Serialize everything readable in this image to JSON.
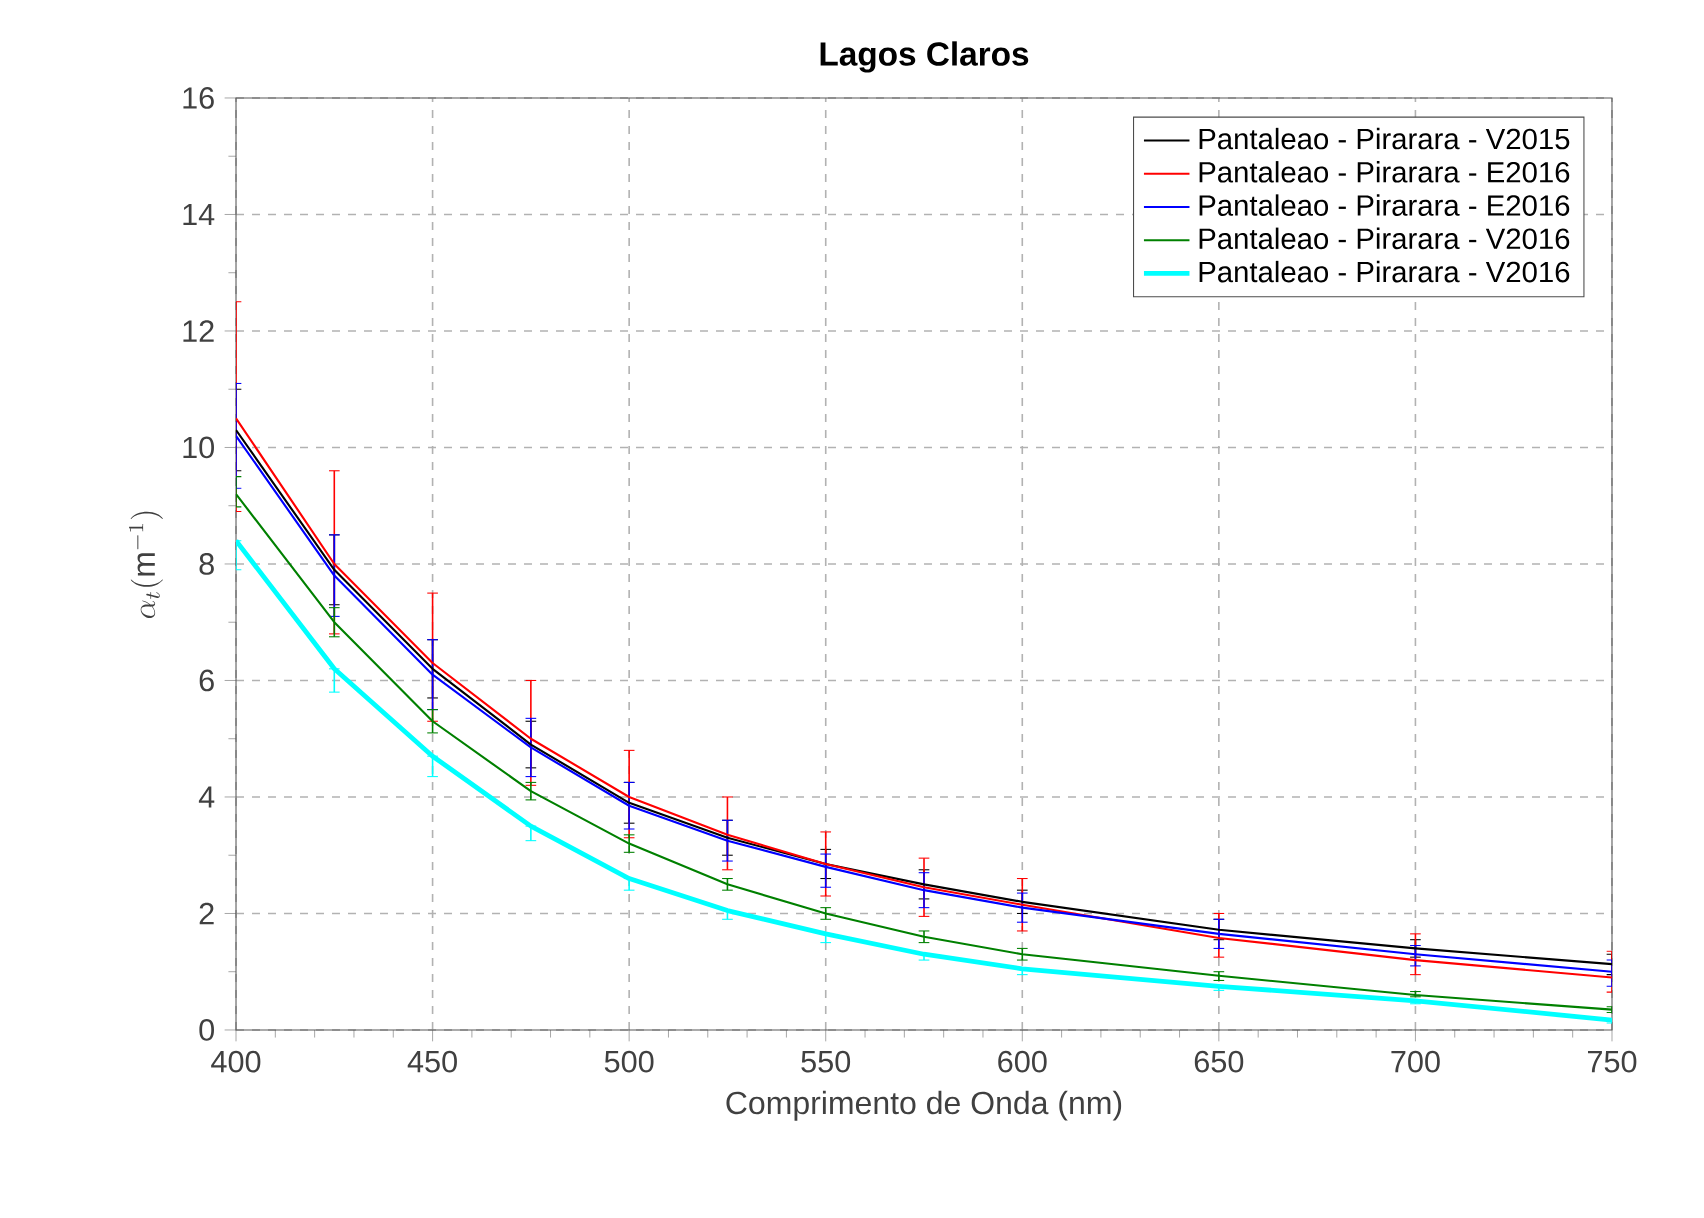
{
  "chart_data": {
    "type": "line",
    "title": "Lagos Claros",
    "xlabel": "Comprimento de Onda (nm)",
    "ylabel": "\\alpha_t(\\mathrm{m}^{-1})",
    "x": [
      400,
      425,
      450,
      475,
      500,
      525,
      550,
      575,
      600,
      650,
      700,
      750
    ],
    "series": [
      {
        "name": "Pantaleao - Pirarara - V2015",
        "color": "#000000",
        "values": [
          10.3,
          7.9,
          6.2,
          4.9,
          3.9,
          3.3,
          2.85,
          2.5,
          2.2,
          1.72,
          1.4,
          1.13
        ],
        "errors": [
          [
            9.6,
            11.0
          ],
          [
            7.3,
            8.5
          ],
          [
            5.7,
            6.7
          ],
          [
            4.5,
            5.3
          ],
          [
            3.55,
            4.25
          ],
          [
            3.0,
            3.6
          ],
          [
            2.6,
            3.1
          ],
          [
            2.25,
            2.75
          ],
          [
            2.0,
            2.4
          ],
          [
            1.55,
            1.9
          ],
          [
            1.25,
            1.55
          ],
          [
            0.95,
            1.3
          ]
        ]
      },
      {
        "name": "Pantaleao - Pirarara - E2016",
        "color": "#ff0000",
        "values": [
          10.5,
          8.0,
          6.3,
          5.0,
          4.0,
          3.35,
          2.85,
          2.45,
          2.15,
          1.58,
          1.2,
          0.9
        ],
        "errors": [
          [
            8.9,
            12.5
          ],
          [
            6.8,
            9.6
          ],
          [
            5.3,
            7.5
          ],
          [
            4.2,
            6.0
          ],
          [
            3.3,
            4.8
          ],
          [
            2.75,
            4.0
          ],
          [
            2.3,
            3.4
          ],
          [
            1.95,
            2.95
          ],
          [
            1.7,
            2.6
          ],
          [
            1.25,
            2.0
          ],
          [
            0.95,
            1.65
          ],
          [
            0.65,
            1.35
          ]
        ]
      },
      {
        "name": "Pantaleao - Pirarara - E2016",
        "color": "#0000ff",
        "values": [
          10.2,
          7.8,
          6.1,
          4.85,
          3.85,
          3.25,
          2.8,
          2.4,
          2.1,
          1.65,
          1.3,
          1.0
        ],
        "errors": [
          [
            9.3,
            11.1
          ],
          [
            7.1,
            8.5
          ],
          [
            5.5,
            6.7
          ],
          [
            4.35,
            5.35
          ],
          [
            3.45,
            4.25
          ],
          [
            2.9,
            3.6
          ],
          [
            2.45,
            3.02
          ],
          [
            2.1,
            2.7
          ],
          [
            1.85,
            2.35
          ],
          [
            1.4,
            1.9
          ],
          [
            1.1,
            1.45
          ],
          [
            0.75,
            1.2
          ]
        ]
      },
      {
        "name": "Pantaleao - Pirarara - V2016",
        "color": "#008000",
        "values": [
          9.2,
          7.0,
          5.3,
          4.1,
          3.2,
          2.5,
          2.0,
          1.6,
          1.3,
          0.93,
          0.6,
          0.35
        ],
        "errors": [
          [
            8.98,
            9.5
          ],
          [
            6.75,
            7.25
          ],
          [
            5.1,
            5.5
          ],
          [
            3.95,
            4.25
          ],
          [
            3.05,
            3.35
          ],
          [
            2.4,
            2.6
          ],
          [
            1.9,
            2.1
          ],
          [
            1.5,
            1.7
          ],
          [
            1.2,
            1.4
          ],
          [
            0.85,
            1.0
          ],
          [
            0.57,
            0.66
          ],
          [
            0.3,
            0.4
          ]
        ]
      },
      {
        "name": "Pantaleao - Pirarara - V2016",
        "color": "#00ffff",
        "values": [
          8.4,
          6.2,
          4.7,
          3.5,
          2.6,
          2.05,
          1.65,
          1.3,
          1.05,
          0.75,
          0.5,
          0.17
        ],
        "errors": [
          [
            7.9,
            8.4
          ],
          [
            5.8,
            6.2
          ],
          [
            4.35,
            4.7
          ],
          [
            3.25,
            3.5
          ],
          [
            2.4,
            2.6
          ],
          [
            1.9,
            2.05
          ],
          [
            1.5,
            1.65
          ],
          [
            1.2,
            1.3
          ],
          [
            0.95,
            1.05
          ],
          [
            0.68,
            0.75
          ],
          [
            0.45,
            0.5
          ],
          [
            0.12,
            0.17
          ]
        ]
      }
    ],
    "xlim": [
      400,
      750
    ],
    "ylim": [
      0,
      16
    ],
    "xticks": [
      400,
      450,
      500,
      550,
      600,
      650,
      700,
      750
    ],
    "yticks": [
      0,
      2,
      4,
      6,
      8,
      10,
      12,
      14,
      16
    ],
    "grid": true,
    "legend": "top right",
    "line_style": "solid"
  }
}
